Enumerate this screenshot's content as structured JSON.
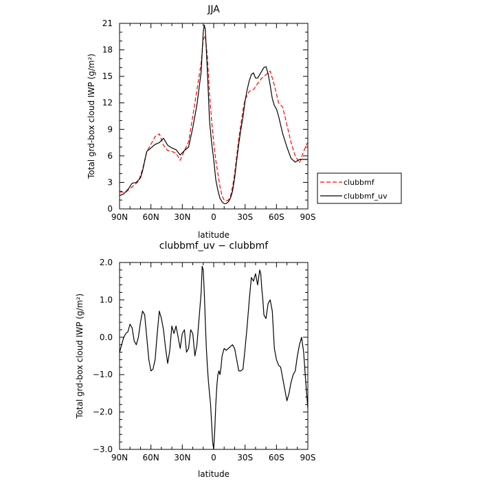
{
  "chart_data": [
    {
      "type": "line",
      "title": "JJA",
      "xlabel": "latitude",
      "ylabel": "Total grd-box cloud IWP (g/m²)",
      "xlim": [
        90,
        -90
      ],
      "ylim": [
        0,
        21
      ],
      "xticks": [
        90,
        60,
        30,
        0,
        -30,
        -60,
        -90
      ],
      "xtick_labels": [
        "90N",
        "60N",
        "30N",
        "0",
        "30S",
        "60S",
        "90S"
      ],
      "yticks": [
        0,
        3,
        6,
        9,
        12,
        15,
        18,
        21
      ],
      "ytick_labels": [
        "0",
        "3",
        "6",
        "9",
        "12",
        "15",
        "18",
        "21"
      ],
      "grid": false,
      "legend": "outside-right",
      "series": [
        {
          "name": "clubbmf",
          "color": "#ff0000",
          "dash": "dashed",
          "x": [
            90,
            84,
            78,
            72,
            68,
            64,
            60,
            56,
            52,
            48,
            44,
            40,
            36,
            32,
            28,
            24,
            20,
            16,
            12,
            10,
            8,
            6,
            4,
            2,
            0,
            -2,
            -4,
            -6,
            -8,
            -10,
            -12,
            -14,
            -16,
            -18,
            -20,
            -22,
            -24,
            -26,
            -28,
            -30,
            -34,
            -38,
            -42,
            -46,
            -50,
            -54,
            -58,
            -62,
            -66,
            -70,
            -74,
            -78,
            -82,
            -86,
            -90
          ],
          "y": [
            1.9,
            1.9,
            2.5,
            3.1,
            4.5,
            6.5,
            7.3,
            8.2,
            8.5,
            7.2,
            6.6,
            6.5,
            6.3,
            5.5,
            6.6,
            7.6,
            10.5,
            13.5,
            16.5,
            19.2,
            19.6,
            17.2,
            13.0,
            10.0,
            7.5,
            5.5,
            4.0,
            2.5,
            1.5,
            1.0,
            0.9,
            1.0,
            1.4,
            2.5,
            4.0,
            6.0,
            8.0,
            9.6,
            11.2,
            12.4,
            13.3,
            13.5,
            14.2,
            14.8,
            15.2,
            15.6,
            14.0,
            12.0,
            11.5,
            9.5,
            7.5,
            6.0,
            5.2,
            6.5,
            7.6
          ]
        },
        {
          "name": "clubbmf_uv",
          "color": "#000000",
          "dash": "solid",
          "x": [
            90,
            86,
            82,
            78,
            74,
            70,
            68,
            64,
            60,
            56,
            52,
            48,
            46,
            44,
            40,
            36,
            32,
            28,
            24,
            20,
            16,
            12,
            10,
            9,
            8,
            6,
            4,
            2,
            0,
            -2,
            -4,
            -6,
            -8,
            -10,
            -12,
            -14,
            -16,
            -18,
            -20,
            -22,
            -24,
            -26,
            -28,
            -30,
            -32,
            -34,
            -36,
            -38,
            -40,
            -42,
            -44,
            -46,
            -48,
            -50,
            -52,
            -54,
            -56,
            -58,
            -60,
            -62,
            -64,
            -66,
            -70,
            -74,
            -78,
            -82,
            -86,
            -90
          ],
          "y": [
            1.5,
            1.7,
            2.2,
            2.9,
            3.0,
            3.5,
            4.3,
            6.5,
            6.9,
            7.3,
            7.5,
            8.0,
            7.6,
            7.2,
            6.9,
            6.7,
            6.1,
            6.6,
            7.0,
            9.2,
            11.8,
            15.5,
            20.0,
            20.8,
            20.3,
            15.5,
            10.0,
            7.5,
            5.6,
            3.3,
            2.1,
            1.2,
            0.8,
            0.6,
            0.6,
            0.8,
            1.2,
            2.0,
            3.5,
            5.5,
            7.4,
            9.0,
            10.4,
            12.2,
            13.5,
            14.5,
            15.2,
            15.4,
            14.8,
            14.8,
            15.2,
            15.6,
            16.0,
            16.1,
            15.3,
            14.0,
            12.5,
            11.7,
            11.3,
            10.5,
            9.5,
            8.5,
            7.0,
            5.7,
            5.3,
            5.6,
            5.6,
            5.6
          ]
        }
      ]
    },
    {
      "type": "line",
      "title": "clubbmf_uv − clubbmf",
      "xlabel": "latitude",
      "ylabel": "Total grd-box cloud IWP (g/m²)",
      "xlim": [
        90,
        -90
      ],
      "ylim": [
        -3.0,
        2.0
      ],
      "xticks": [
        90,
        60,
        30,
        0,
        -30,
        -60,
        -90
      ],
      "xtick_labels": [
        "90N",
        "60N",
        "30N",
        "0",
        "30S",
        "60S",
        "90S"
      ],
      "yticks": [
        -3.0,
        -2.0,
        -1.0,
        0.0,
        1.0,
        2.0
      ],
      "ytick_labels": [
        "−3.0",
        "−2.0",
        "−1.0",
        "0.0",
        "1.0",
        "2.0"
      ],
      "grid": false,
      "series": [
        {
          "color": "#000000",
          "dash": "solid",
          "x": [
            90,
            88,
            86,
            84,
            82,
            80,
            78,
            76,
            74,
            72,
            70,
            68,
            66,
            64,
            62,
            60,
            58,
            56,
            54,
            52,
            50,
            48,
            46,
            44,
            42,
            40,
            38,
            36,
            34,
            32,
            30,
            28,
            26,
            24,
            22,
            20,
            18,
            16,
            14,
            12,
            11,
            10,
            9,
            8,
            7,
            6,
            5,
            4,
            3,
            2,
            1,
            0,
            -1,
            -2,
            -3,
            -4,
            -5,
            -6,
            -7,
            -8,
            -10,
            -12,
            -14,
            -16,
            -18,
            -20,
            -22,
            -24,
            -26,
            -28,
            -30,
            -32,
            -34,
            -36,
            -38,
            -40,
            -42,
            -43,
            -44,
            -45,
            -46,
            -47,
            -48,
            -50,
            -52,
            -54,
            -56,
            -58,
            -60,
            -62,
            -64,
            -66,
            -68,
            -70,
            -72,
            -74,
            -76,
            -78,
            -80,
            -82,
            -84,
            -86,
            -88,
            -90
          ],
          "y": [
            -0.4,
            -0.2,
            0.0,
            0.1,
            0.15,
            0.35,
            0.25,
            -0.1,
            -0.2,
            0.0,
            0.4,
            0.7,
            0.6,
            0.0,
            -0.6,
            -0.9,
            -0.85,
            -0.6,
            0.1,
            0.7,
            0.5,
            0.2,
            -0.3,
            -0.7,
            -0.35,
            0.3,
            0.1,
            0.3,
            0.0,
            -0.3,
            0.1,
            0.2,
            -0.4,
            -0.3,
            0.2,
            0.1,
            -0.5,
            -0.2,
            0.5,
            1.2,
            1.9,
            1.8,
            1.2,
            0.4,
            -0.3,
            -0.8,
            -1.2,
            -1.5,
            -1.8,
            -2.3,
            -2.8,
            -3.0,
            -2.5,
            -1.8,
            -1.3,
            -1.0,
            -0.9,
            -1.0,
            -0.8,
            -0.5,
            -0.3,
            -0.35,
            -0.3,
            -0.25,
            -0.2,
            -0.3,
            -0.6,
            -0.9,
            -0.9,
            -0.85,
            -0.3,
            0.3,
            1.0,
            1.6,
            1.5,
            1.7,
            1.4,
            1.6,
            1.8,
            1.7,
            1.3,
            1.0,
            0.6,
            0.5,
            0.9,
            1.0,
            0.7,
            -0.3,
            -0.6,
            -0.75,
            -0.8,
            -1.1,
            -1.4,
            -1.7,
            -1.5,
            -1.2,
            -1.0,
            -0.9,
            -0.5,
            -0.2,
            0.0,
            -0.4,
            -1.2,
            -1.9
          ]
        }
      ]
    }
  ]
}
